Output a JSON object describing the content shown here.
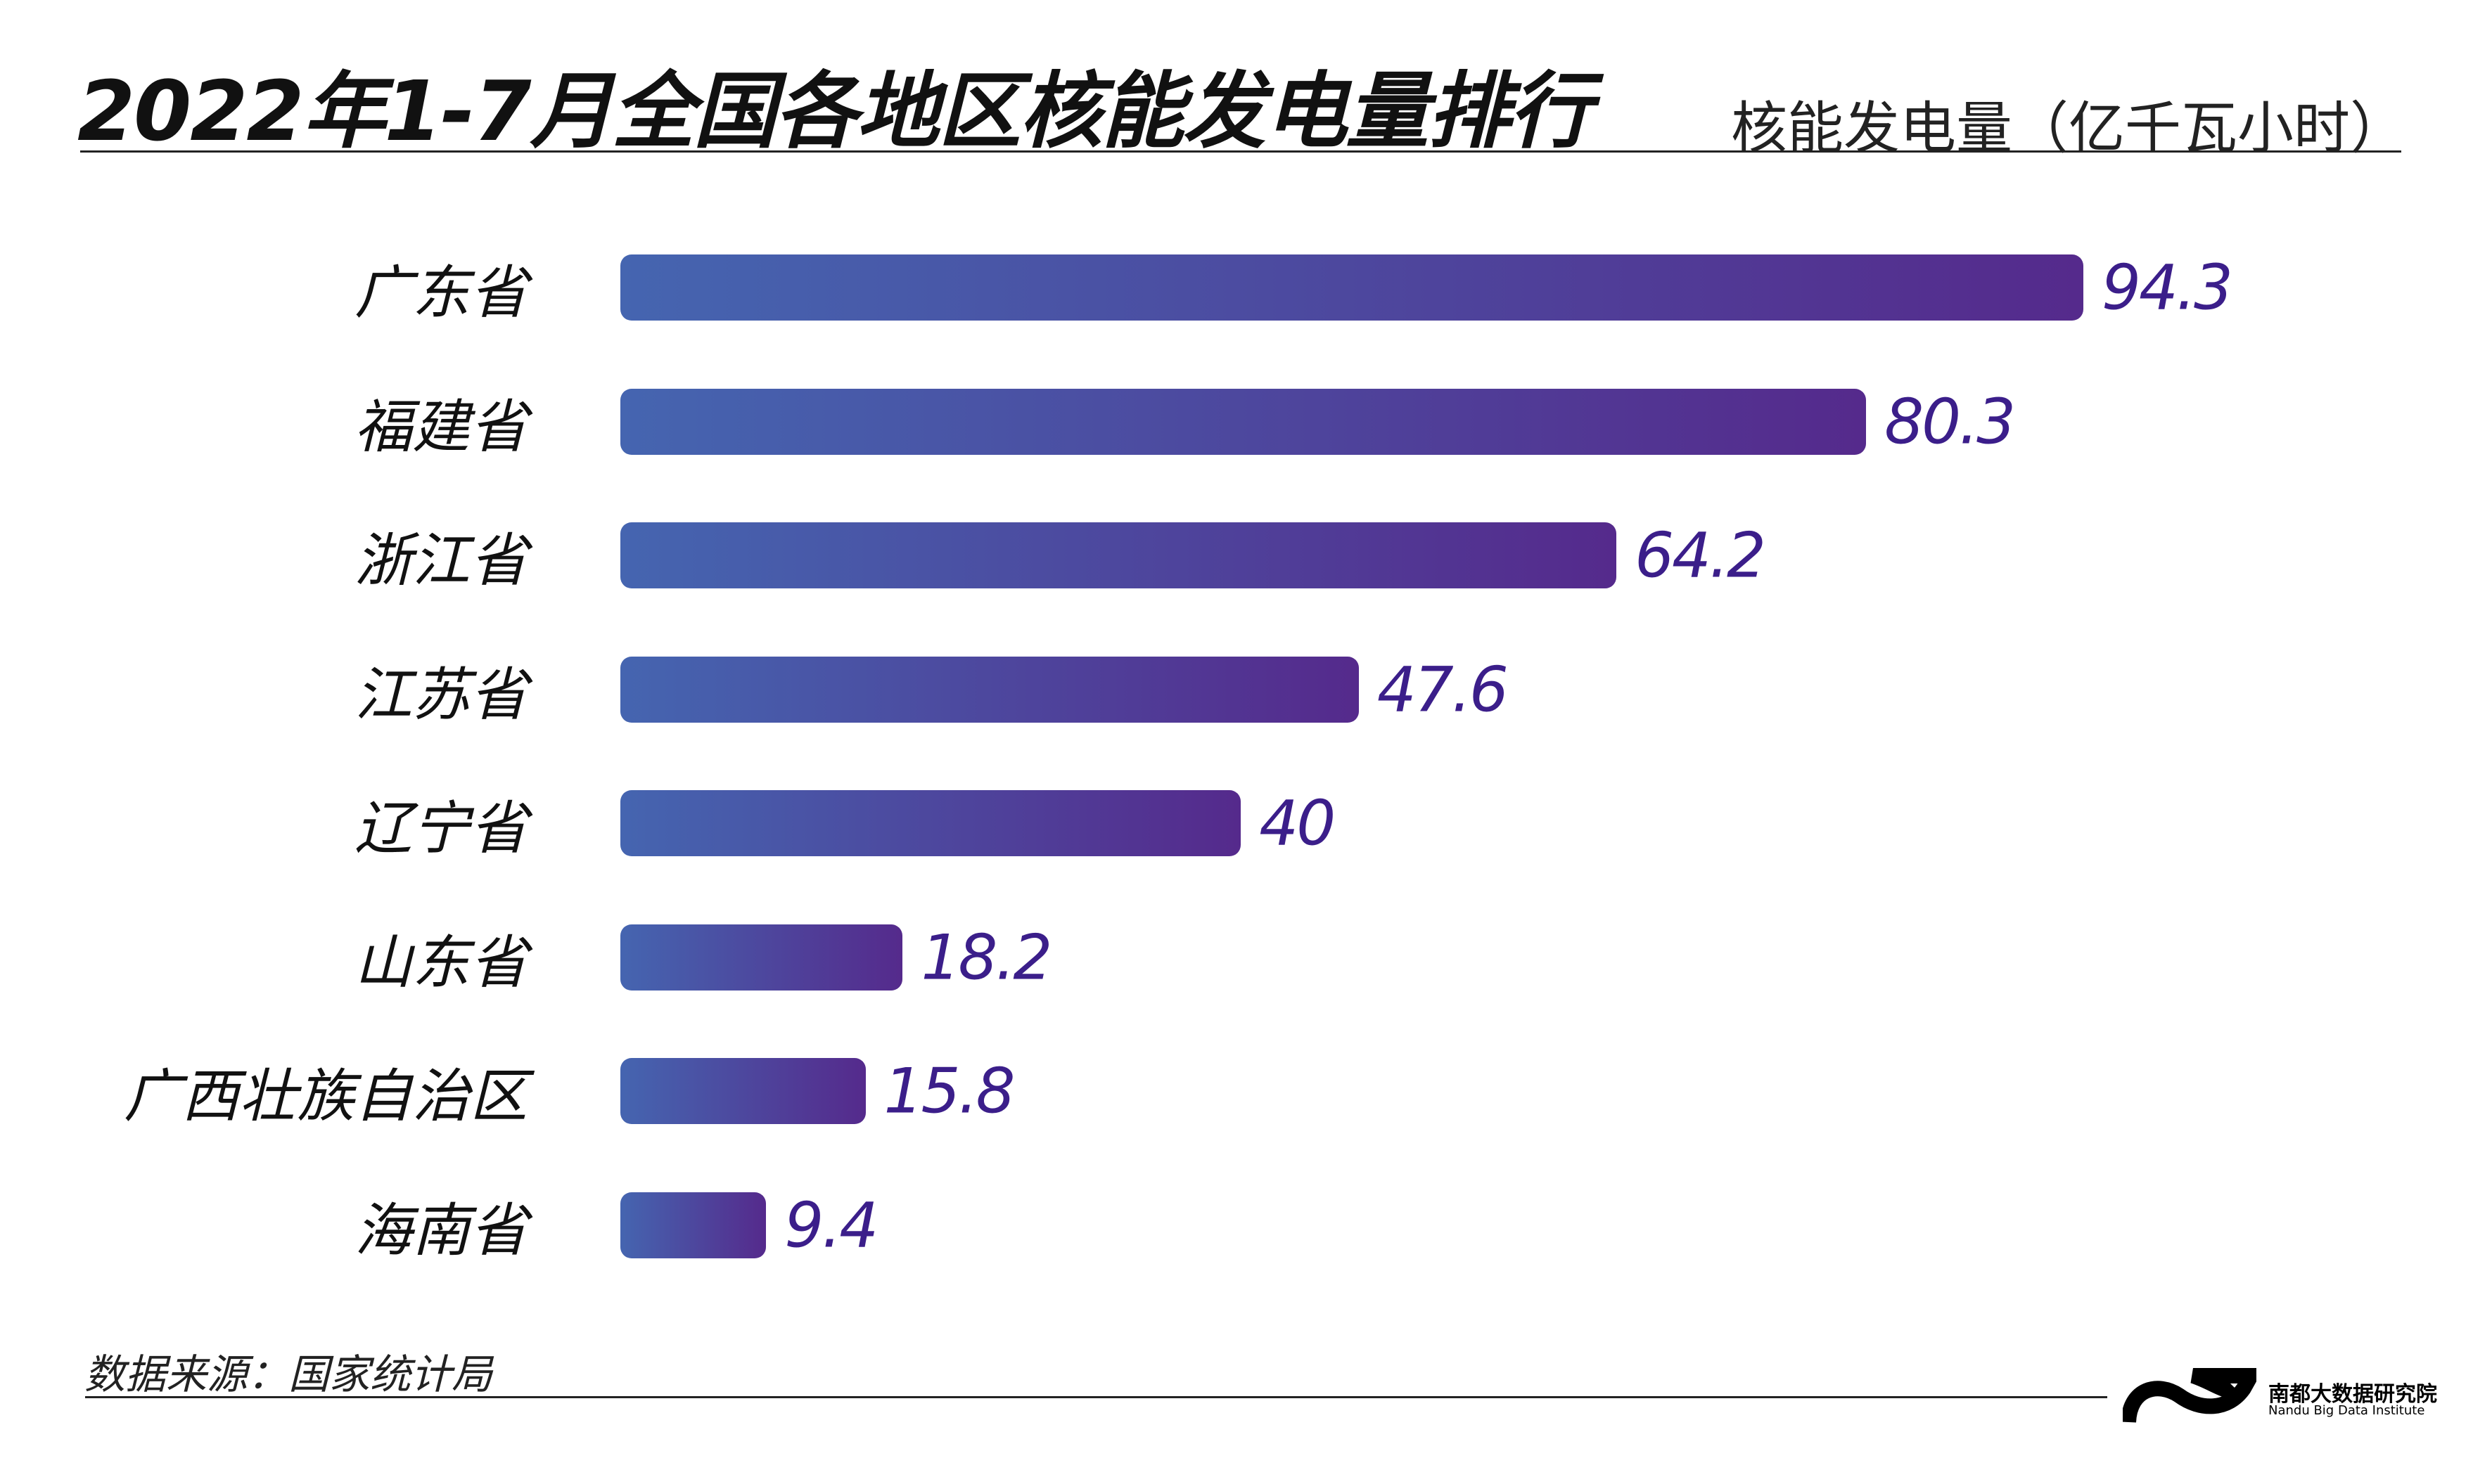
{
  "chart_data": {
    "type": "bar",
    "orientation": "horizontal",
    "title": "2022年1-7月全国各地区核能发电量排行",
    "unit_label": "核能发电量（亿千瓦小时）",
    "categories": [
      "广东省",
      "福建省",
      "浙江省",
      "江苏省",
      "辽宁省",
      "山东省",
      "广西壮族自治区",
      "海南省"
    ],
    "values": [
      94.3,
      80.3,
      64.2,
      47.6,
      40,
      18.2,
      15.8,
      9.4
    ],
    "value_labels": [
      "94.3",
      "80.3",
      "64.2",
      "47.6",
      "40",
      "18.2",
      "15.8",
      "9.4"
    ],
    "xlim": [
      0,
      94.3
    ],
    "grid": false
  },
  "footer": {
    "source": "数据来源：国家统计局",
    "logo_cn": "南都大数据研究院",
    "logo_en": "Nandu Big Data Institute"
  },
  "colors": {
    "bar_start": "#4565b0",
    "bar_end": "#552a8c",
    "value_text": "#3b1e8a"
  }
}
